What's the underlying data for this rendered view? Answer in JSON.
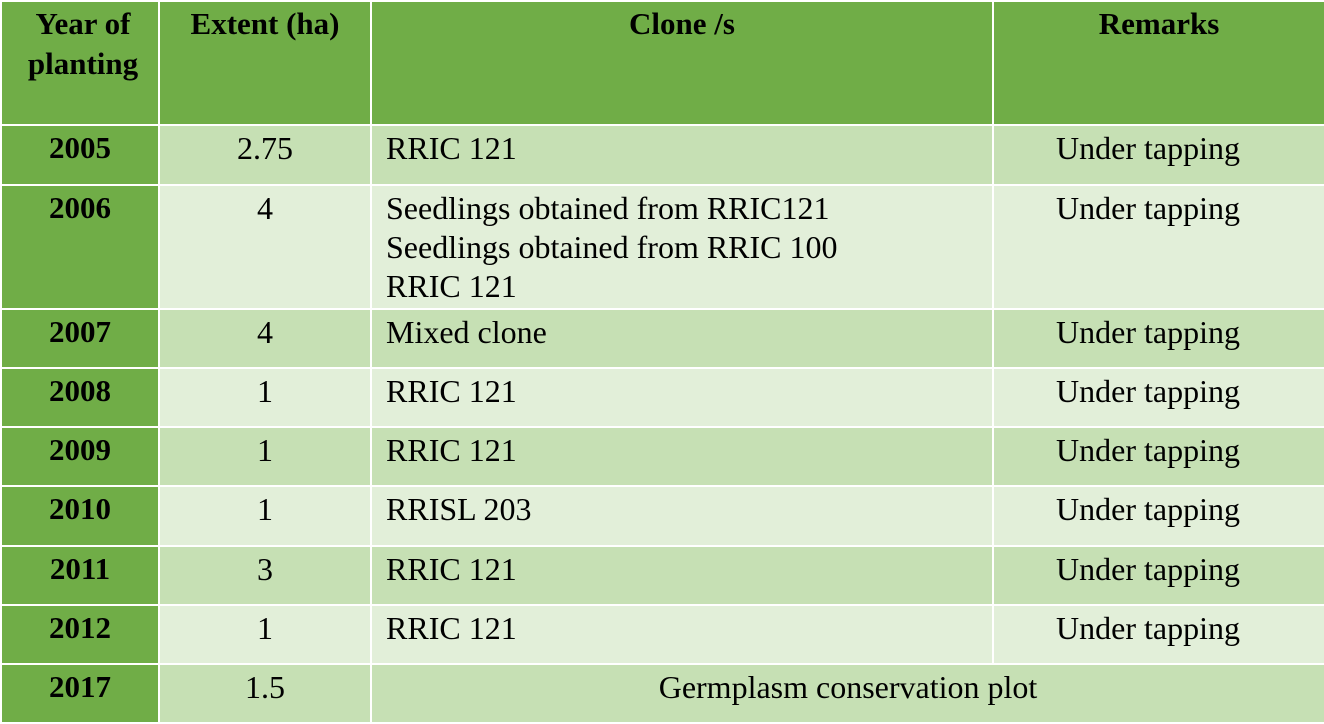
{
  "table": {
    "headers": {
      "year": "Year of planting",
      "extent": "Extent (ha)",
      "clone": "Clone /s",
      "remarks": "Remarks"
    },
    "rows": [
      {
        "year": "2005",
        "extent": "2.75",
        "clones": [
          "RRIC 121"
        ],
        "remarks": "Under tapping"
      },
      {
        "year": "2006",
        "extent": "4",
        "clones": [
          "Seedlings obtained from RRIC121",
          "Seedlings obtained from RRIC 100",
          "RRIC 121"
        ],
        "remarks": "Under tapping"
      },
      {
        "year": "2007",
        "extent": "4",
        "clones": [
          "Mixed clone"
        ],
        "remarks": "Under tapping"
      },
      {
        "year": "2008",
        "extent": "1",
        "clones": [
          "RRIC 121"
        ],
        "remarks": "Under tapping"
      },
      {
        "year": "2009",
        "extent": "1",
        "clones": [
          "RRIC 121"
        ],
        "remarks": "Under tapping"
      },
      {
        "year": "2010",
        "extent": "1",
        "clones": [
          "RRISL 203"
        ],
        "remarks": "Under tapping"
      },
      {
        "year": "2011",
        "extent": "3",
        "clones": [
          "RRIC 121"
        ],
        "remarks": "Under tapping"
      },
      {
        "year": "2012",
        "extent": "1",
        "clones": [
          "RRIC 121"
        ],
        "remarks": "Under tapping"
      },
      {
        "year": "2017",
        "extent": "1.5",
        "merged": "Germplasm conservation plot"
      }
    ]
  },
  "colors": {
    "header_bg": "#70ad47",
    "row_dark": "#c6e0b4",
    "row_light": "#e2efd9"
  }
}
